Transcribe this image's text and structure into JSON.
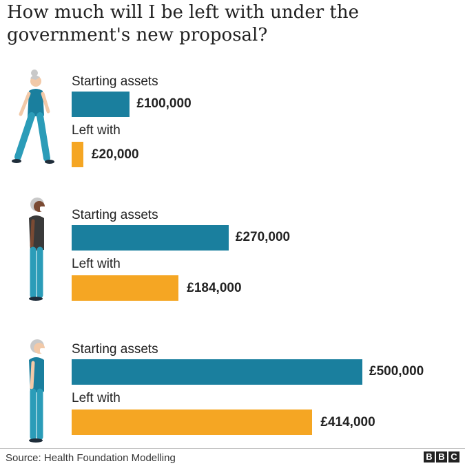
{
  "title": "How much will I be left with under the government's new proposal?",
  "source": "Source: Health Foundation Modelling",
  "logo": [
    "B",
    "B",
    "C"
  ],
  "colors": {
    "starting": "#1a7f9e",
    "left": "#f5a623",
    "skin_light": "#f2c9a8",
    "skin_dark": "#7a4a33",
    "hair": "#c9c9c9",
    "teal_top": "#1a7f9e",
    "dark_top": "#3a3a3a",
    "trousers": "#2b9cb8"
  },
  "icons": [
    "person-walking-icon",
    "person-standing-icon",
    "person-standing-icon"
  ],
  "chart_data": {
    "type": "bar",
    "orientation": "horizontal",
    "title": "How much will I be left with under the government's new proposal?",
    "currency": "£",
    "series_labels": [
      "Starting assets",
      "Left with"
    ],
    "groups": [
      {
        "starting": 100000,
        "starting_label": "£100,000",
        "left": 20000,
        "left_label": "£20,000"
      },
      {
        "starting": 270000,
        "starting_label": "£270,000",
        "left": 184000,
        "left_label": "£184,000"
      },
      {
        "starting": 500000,
        "starting_label": "£500,000",
        "left": 414000,
        "left_label": "£414,000"
      }
    ],
    "grid": false,
    "legend": "none"
  }
}
